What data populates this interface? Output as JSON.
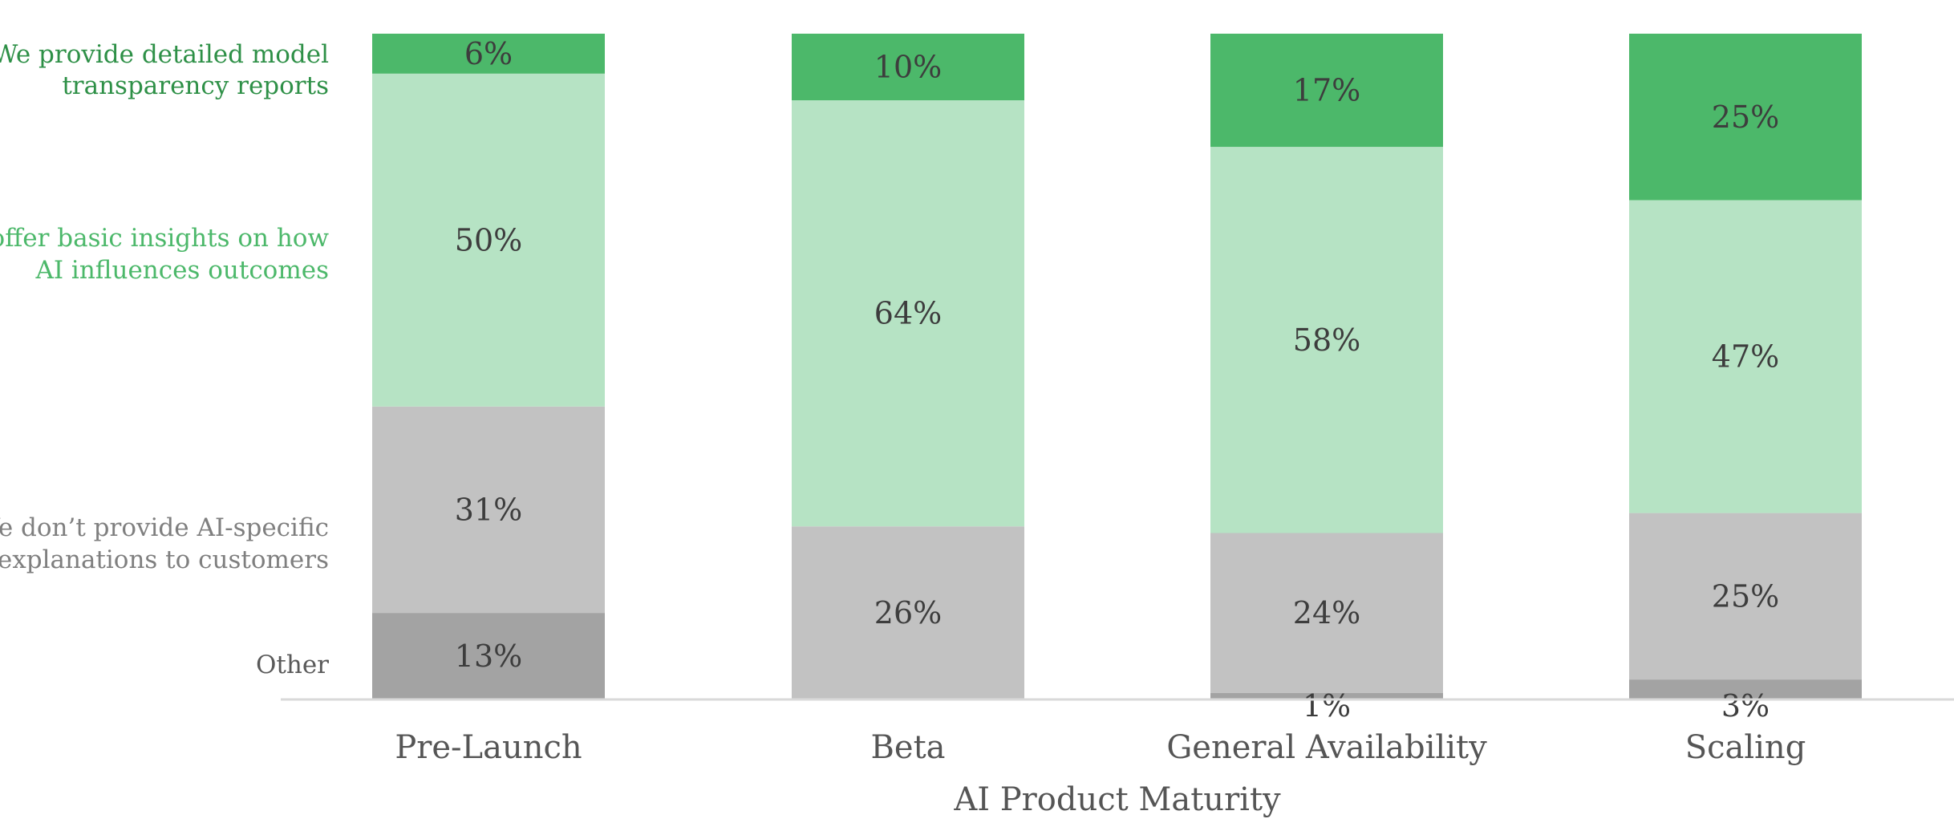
{
  "chart_data": {
    "type": "bar",
    "stacked": true,
    "xlabel": "AI Product Maturity",
    "ylabel": "",
    "ylim": [
      0,
      100
    ],
    "grid": false,
    "legend": "left",
    "categories": [
      "Pre-Launch",
      "Beta",
      "General Availability",
      "Scaling"
    ],
    "series": [
      {
        "name": "Other",
        "color": "#a3a3a3",
        "values": [
          13,
          0,
          1,
          3
        ],
        "labels": [
          "13%",
          "",
          "1%",
          "3%"
        ],
        "legend_lines": [
          "Other"
        ],
        "legend_color": "#595959"
      },
      {
        "name": "We don’t provide AI-specific explanations to customers",
        "color": "#c2c2c2",
        "values": [
          31,
          26,
          24,
          25
        ],
        "labels": [
          "31%",
          "26%",
          "24%",
          "25%"
        ],
        "legend_lines": [
          "We don’t provide AI-specific",
          "explanations to customers"
        ],
        "legend_color": "#7f7f7f"
      },
      {
        "name": "We offer basic insights on how AI influences outcomes",
        "color": "#b6e3c4",
        "values": [
          50,
          64,
          58,
          47
        ],
        "labels": [
          "50%",
          "64%",
          "58%",
          "47%"
        ],
        "legend_lines": [
          "We offer basic insights on how",
          "AI influences outcomes"
        ],
        "legend_color": "#4cb86a"
      },
      {
        "name": "We provide detailed model transparency reports",
        "color": "#4cb86a",
        "values": [
          6,
          10,
          17,
          25
        ],
        "labels": [
          "6%",
          "10%",
          "17%",
          "25%"
        ],
        "legend_lines": [
          "We provide detailed model",
          "transparency reports"
        ],
        "legend_color": "#2e9047"
      }
    ],
    "axis_color": "#d9d9d9"
  }
}
